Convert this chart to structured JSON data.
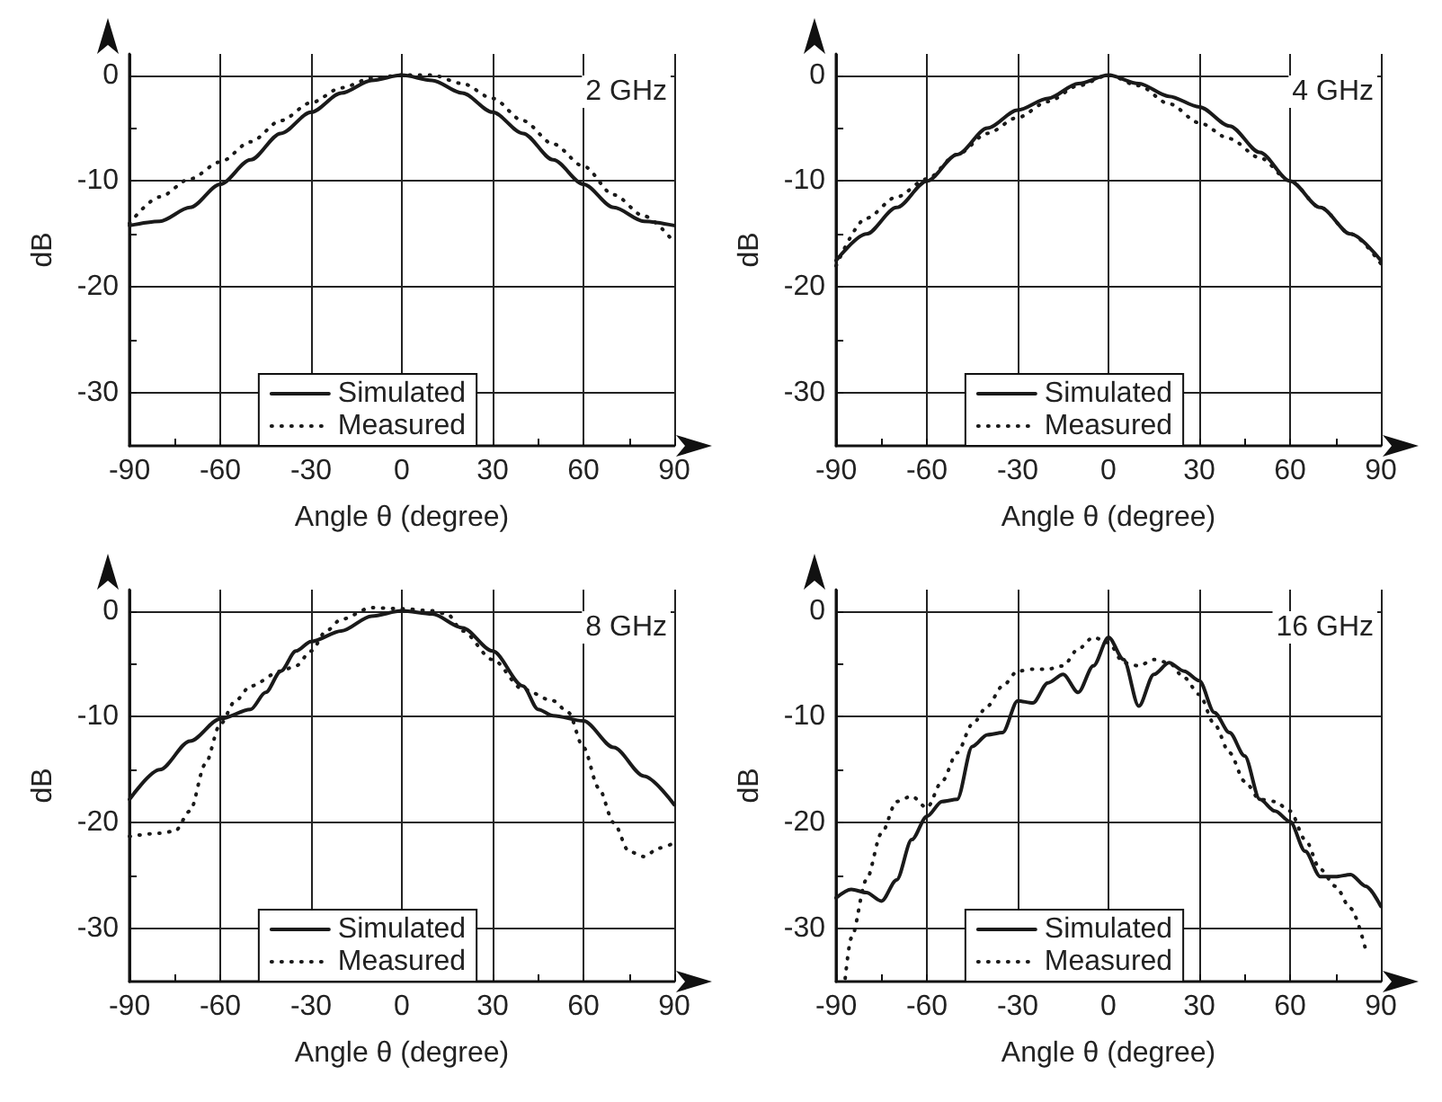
{
  "chart_data": [
    {
      "type": "line",
      "xlabel": "Angle θ (degree)",
      "ylabel": "dB",
      "annotations": [
        "2 GHz"
      ],
      "xlim": [
        -90,
        90
      ],
      "ylim": [
        -35,
        2
      ],
      "xticks": [
        -90,
        {
          "value": -75,
          "label": null
        },
        -60,
        {
          "value": -45,
          "label": null
        },
        -30,
        {
          "value": -15,
          "label": null
        },
        0,
        {
          "value": 15,
          "label": null
        },
        30,
        {
          "value": 45,
          "label": null
        },
        60,
        {
          "value": 75,
          "label": null
        },
        90
      ],
      "yticks": [
        0,
        {
          "value": -5,
          "label": null
        },
        -10,
        {
          "value": -15,
          "label": null
        },
        -20,
        {
          "value": -25,
          "label": null
        },
        -30
      ],
      "grid": true,
      "legend": "bottom",
      "marker": "none",
      "series": [
        {
          "name": "Simulated",
          "color": "#1a1a1a",
          "line_style": "solid",
          "x": [
            -90,
            -80,
            -70,
            -60,
            -50,
            -40,
            -30,
            -20,
            -10,
            0,
            10,
            20,
            30,
            40,
            50,
            60,
            70,
            80,
            90
          ],
          "values": [
            -14.2,
            -13.8,
            -12.5,
            -10.3,
            -8,
            -5.5,
            -3.5,
            -1.7,
            -0.5,
            0,
            -0.5,
            -1.7,
            -3.5,
            -5.5,
            -8,
            -10.3,
            -12.5,
            -13.8,
            -14.2
          ]
        },
        {
          "name": "Measured",
          "color": "#1a1a1a",
          "line_style": "dotted",
          "x": [
            -90,
            -80,
            -70,
            -60,
            -50,
            -40,
            -30,
            -20,
            -10,
            0,
            10,
            20,
            30,
            40,
            50,
            60,
            70,
            80,
            90
          ],
          "values": [
            -14,
            -11.5,
            -9.8,
            -8.2,
            -6.3,
            -4.3,
            -2.6,
            -1.2,
            -0.3,
            0,
            0,
            -0.8,
            -2.2,
            -4.3,
            -6.5,
            -8.6,
            -11.3,
            -13.3,
            -15.8
          ]
        }
      ]
    },
    {
      "type": "line",
      "xlabel": "Angle θ (degree)",
      "ylabel": "dB",
      "annotations": [
        "4 GHz"
      ],
      "xlim": [
        -90,
        90
      ],
      "ylim": [
        -35,
        2
      ],
      "xticks": [
        -90,
        {
          "value": -75,
          "label": null
        },
        -60,
        {
          "value": -45,
          "label": null
        },
        -30,
        {
          "value": -15,
          "label": null
        },
        0,
        {
          "value": 15,
          "label": null
        },
        30,
        {
          "value": 45,
          "label": null
        },
        60,
        {
          "value": 75,
          "label": null
        },
        90
      ],
      "yticks": [
        0,
        {
          "value": -5,
          "label": null
        },
        -10,
        {
          "value": -15,
          "label": null
        },
        -20,
        {
          "value": -25,
          "label": null
        },
        -30
      ],
      "grid": true,
      "legend": "bottom",
      "marker": "none",
      "series": [
        {
          "name": "Simulated",
          "color": "#1a1a1a",
          "line_style": "solid",
          "x": [
            -90,
            -80,
            -70,
            -60,
            -50,
            -40,
            -30,
            -20,
            -10,
            0,
            10,
            20,
            30,
            40,
            50,
            60,
            70,
            80,
            90
          ],
          "values": [
            -17.5,
            -15,
            -12.5,
            -10,
            -7.5,
            -5,
            -3.3,
            -2.2,
            -0.8,
            0,
            -0.8,
            -2,
            -3,
            -4.8,
            -7.3,
            -10,
            -12.5,
            -15,
            -17.5
          ]
        },
        {
          "name": "Measured",
          "color": "#1a1a1a",
          "line_style": "dotted",
          "x": [
            -90,
            -80,
            -70,
            -60,
            -50,
            -40,
            -30,
            -20,
            -10,
            0,
            10,
            20,
            30,
            40,
            50,
            60,
            70,
            80,
            90
          ],
          "values": [
            -18,
            -13.5,
            -11.5,
            -9.8,
            -7.5,
            -5.5,
            -4,
            -2.5,
            -1,
            0,
            -1,
            -2.7,
            -4.5,
            -6,
            -7.8,
            -10,
            -12.5,
            -15,
            -17.8
          ]
        }
      ]
    },
    {
      "type": "line",
      "xlabel": "Angle θ (degree)",
      "ylabel": "dB",
      "annotations": [
        "8 GHz"
      ],
      "xlim": [
        -90,
        90
      ],
      "ylim": [
        -35,
        2
      ],
      "xticks": [
        -90,
        {
          "value": -75,
          "label": null
        },
        -60,
        {
          "value": -45,
          "label": null
        },
        -30,
        {
          "value": -15,
          "label": null
        },
        0,
        {
          "value": 15,
          "label": null
        },
        30,
        {
          "value": 45,
          "label": null
        },
        60,
        {
          "value": 75,
          "label": null
        },
        90
      ],
      "yticks": [
        0,
        {
          "value": -5,
          "label": null
        },
        -10,
        {
          "value": -15,
          "label": null
        },
        -20,
        {
          "value": -25,
          "label": null
        },
        -30
      ],
      "grid": true,
      "legend": "bottom",
      "marker": "none",
      "series": [
        {
          "name": "Simulated",
          "color": "#1a1a1a",
          "line_style": "solid",
          "x": [
            -90,
            -80,
            -70,
            -60,
            -50,
            -45,
            -40,
            -35,
            -30,
            -20,
            -10,
            0,
            10,
            20,
            30,
            40,
            45,
            50,
            60,
            70,
            80,
            90
          ],
          "values": [
            -17.8,
            -15,
            -12.3,
            -10.2,
            -9.3,
            -7.7,
            -5.7,
            -3.8,
            -2.9,
            -1.9,
            -0.5,
            0,
            -0.3,
            -1.6,
            -3.8,
            -7.1,
            -9.3,
            -9.9,
            -10.4,
            -12.9,
            -15.6,
            -18.3
          ]
        },
        {
          "name": "Measured",
          "color": "#1a1a1a",
          "line_style": "dotted",
          "x": [
            -90,
            -80,
            -75,
            -70,
            -65,
            -60,
            -55,
            -50,
            -40,
            -35,
            -30,
            -25,
            -20,
            -10,
            0,
            10,
            15,
            20,
            30,
            40,
            50,
            55,
            60,
            65,
            70,
            75,
            80,
            85,
            90
          ],
          "values": [
            -21.3,
            -21,
            -20.8,
            -18.9,
            -14.5,
            -10.7,
            -8.5,
            -7.1,
            -5.7,
            -5.2,
            -3.8,
            -1.9,
            -0.8,
            0.3,
            0.2,
            0,
            -0.3,
            -1.9,
            -4.6,
            -7.4,
            -8.5,
            -9.6,
            -12.9,
            -16.7,
            -20,
            -22.7,
            -23.2,
            -22.4,
            -21.9
          ]
        }
      ]
    },
    {
      "type": "line",
      "xlabel": "Angle θ (degree)",
      "ylabel": "dB",
      "annotations": [
        "16 GHz"
      ],
      "xlim": [
        -90,
        90
      ],
      "ylim": [
        -35,
        2
      ],
      "xticks": [
        -90,
        {
          "value": -75,
          "label": null
        },
        -60,
        {
          "value": -45,
          "label": null
        },
        -30,
        {
          "value": -15,
          "label": null
        },
        0,
        {
          "value": 15,
          "label": null
        },
        30,
        {
          "value": 45,
          "label": null
        },
        60,
        {
          "value": 75,
          "label": null
        },
        90
      ],
      "yticks": [
        0,
        {
          "value": -5,
          "label": null
        },
        -10,
        {
          "value": -15,
          "label": null
        },
        -20,
        {
          "value": -25,
          "label": null
        },
        -30
      ],
      "grid": true,
      "legend": "bottom",
      "marker": "none",
      "series": [
        {
          "name": "Simulated",
          "color": "#1a1a1a",
          "line_style": "solid",
          "x": [
            -90,
            -85,
            -80,
            -75,
            -70,
            -65,
            -60,
            -55,
            -50,
            -45,
            -40,
            -35,
            -30,
            -25,
            -20,
            -15,
            -10,
            -5,
            0,
            5,
            10,
            15,
            20,
            25,
            30,
            35,
            40,
            45,
            50,
            55,
            60,
            65,
            70,
            75,
            80,
            85,
            90
          ],
          "values": [
            -27.1,
            -26.3,
            -26.6,
            -27.4,
            -25.4,
            -21.6,
            -19.4,
            -18,
            -17.8,
            -12.8,
            -11.7,
            -11.5,
            -8.5,
            -8.7,
            -6.8,
            -6,
            -7.7,
            -5.2,
            -2.5,
            -4.6,
            -9,
            -6,
            -4.9,
            -5.7,
            -6.6,
            -9.6,
            -11.5,
            -13.7,
            -17.8,
            -18.9,
            -19.9,
            -22.7,
            -25.1,
            -25.1,
            -24.9,
            -26,
            -27.9
          ]
        },
        {
          "name": "Measured",
          "color": "#1a1a1a",
          "line_style": "dotted",
          "x": [
            -87,
            -85,
            -80,
            -75,
            -70,
            -65,
            -60,
            -55,
            -50,
            -45,
            -40,
            -35,
            -30,
            -25,
            -20,
            -15,
            -10,
            -5,
            0,
            5,
            10,
            15,
            20,
            25,
            30,
            35,
            40,
            45,
            50,
            55,
            60,
            65,
            70,
            75,
            80,
            85
          ],
          "values": [
            -34.7,
            -30.9,
            -25.4,
            -21,
            -18,
            -17.5,
            -18.6,
            -16.1,
            -13.4,
            -10.7,
            -9,
            -7.1,
            -5.7,
            -5.5,
            -5.5,
            -5.2,
            -3.6,
            -2.5,
            -3,
            -4.9,
            -5.2,
            -4.6,
            -4.9,
            -6.3,
            -7.9,
            -10.7,
            -13.4,
            -16.1,
            -17.8,
            -18,
            -18.9,
            -21.6,
            -24.4,
            -26,
            -28.1,
            -32
          ]
        }
      ]
    }
  ]
}
